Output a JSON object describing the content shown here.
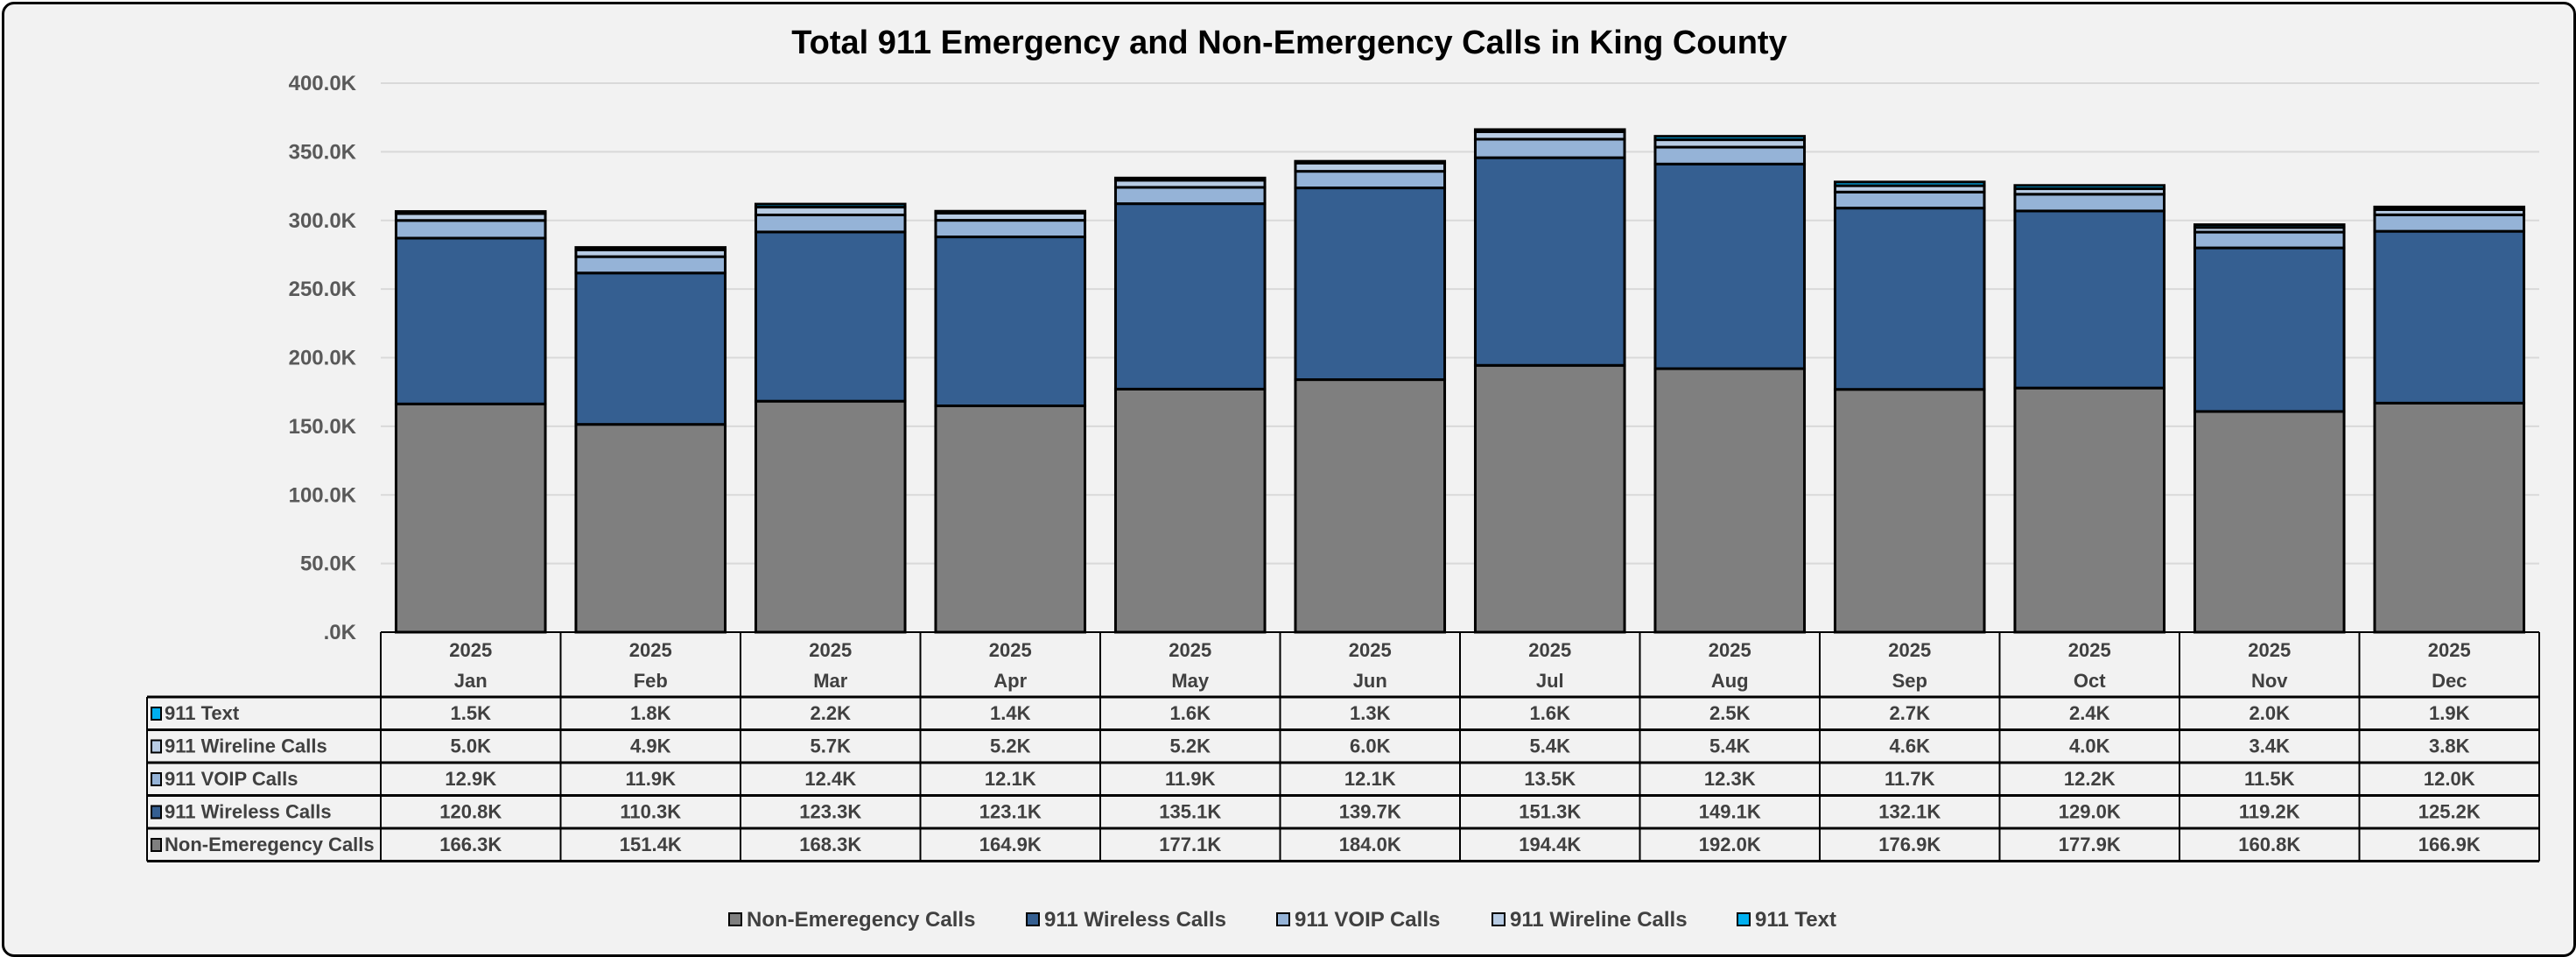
{
  "chart_data": {
    "type": "bar",
    "stacked": true,
    "title": "Total 911 Emergency and Non-Emergency Calls in King County",
    "categories": [
      {
        "year": "2025",
        "month": "Jan"
      },
      {
        "year": "2025",
        "month": "Feb"
      },
      {
        "year": "2025",
        "month": "Mar"
      },
      {
        "year": "2025",
        "month": "Apr"
      },
      {
        "year": "2025",
        "month": "May"
      },
      {
        "year": "2025",
        "month": "Jun"
      },
      {
        "year": "2025",
        "month": "Jul"
      },
      {
        "year": "2025",
        "month": "Aug"
      },
      {
        "year": "2025",
        "month": "Sep"
      },
      {
        "year": "2025",
        "month": "Oct"
      },
      {
        "year": "2025",
        "month": "Nov"
      },
      {
        "year": "2025",
        "month": "Dec"
      }
    ],
    "series": [
      {
        "name": "Non-Emeregency Calls",
        "color": "#7F7F7F",
        "values": [
          166.3,
          151.4,
          168.3,
          164.9,
          177.1,
          184.0,
          194.4,
          192.0,
          176.9,
          177.9,
          160.8,
          166.9
        ],
        "labels": [
          "166.3K",
          "151.4K",
          "168.3K",
          "164.9K",
          "177.1K",
          "184.0K",
          "194.4K",
          "192.0K",
          "176.9K",
          "177.9K",
          "160.8K",
          "166.9K"
        ]
      },
      {
        "name": "911 Wireless Calls",
        "color": "#355F91",
        "values": [
          120.8,
          110.3,
          123.3,
          123.1,
          135.1,
          139.7,
          151.3,
          149.1,
          132.1,
          129.0,
          119.2,
          125.2
        ],
        "labels": [
          "120.8K",
          "110.3K",
          "123.3K",
          "123.1K",
          "135.1K",
          "139.7K",
          "151.3K",
          "149.1K",
          "132.1K",
          "129.0K",
          "119.2K",
          "125.2K"
        ]
      },
      {
        "name": "911 VOIP Calls",
        "color": "#95B3D7",
        "values": [
          12.9,
          11.9,
          12.4,
          12.1,
          11.9,
          12.1,
          13.5,
          12.3,
          11.7,
          12.2,
          11.5,
          12.0
        ],
        "labels": [
          "12.9K",
          "11.9K",
          "12.4K",
          "12.1K",
          "11.9K",
          "12.1K",
          "13.5K",
          "12.3K",
          "11.7K",
          "12.2K",
          "11.5K",
          "12.0K"
        ]
      },
      {
        "name": "911 Wireline Calls",
        "color": "#B8CCE4",
        "values": [
          5.0,
          4.9,
          5.7,
          5.2,
          5.2,
          6.0,
          5.4,
          5.4,
          4.6,
          4.0,
          3.4,
          3.8
        ],
        "labels": [
          "5.0K",
          "4.9K",
          "5.7K",
          "5.2K",
          "5.2K",
          "6.0K",
          "5.4K",
          "5.4K",
          "4.6K",
          "4.0K",
          "3.4K",
          "3.8K"
        ]
      },
      {
        "name": "911 Text",
        "color": "#00B0F0",
        "values": [
          1.5,
          1.8,
          2.2,
          1.4,
          1.6,
          1.3,
          1.6,
          2.5,
          2.7,
          2.4,
          2.0,
          1.9
        ],
        "labels": [
          "1.5K",
          "1.8K",
          "2.2K",
          "1.4K",
          "1.6K",
          "1.3K",
          "1.6K",
          "2.5K",
          "2.7K",
          "2.4K",
          "2.0K",
          "1.9K"
        ]
      }
    ],
    "value_unit": "thousands",
    "ylim": [
      0,
      400
    ],
    "yticks": [
      ".0K",
      "50.0K",
      "100.0K",
      "150.0K",
      "200.0K",
      "250.0K",
      "300.0K",
      "350.0K",
      "400.0K"
    ],
    "grid": true,
    "legend": "bottom",
    "data_table": true
  }
}
